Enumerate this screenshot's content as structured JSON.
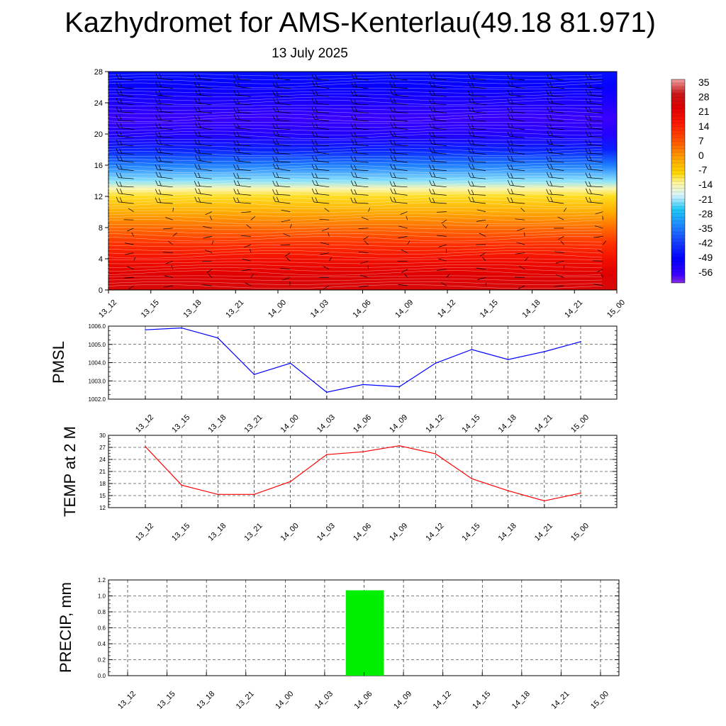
{
  "title": "Kazhydromet for AMS-Kenterlau(49.18 81.971)",
  "subtitle": "13 July 2025",
  "time_labels": [
    "13_12",
    "13_15",
    "13_18",
    "13_21",
    "14_00",
    "14_03",
    "14_06",
    "14_09",
    "14_12",
    "14_15",
    "14_18",
    "14_21",
    "15_00"
  ],
  "colorbar": {
    "labels": [
      "35",
      "28",
      "21",
      "14",
      "7",
      "0",
      "-7",
      "-14",
      "-21",
      "-28",
      "-35",
      "-42",
      "-49",
      "-56"
    ]
  },
  "chart_data": [
    {
      "type": "heatmap",
      "title": "Kazhydromet for AMS-Kenterlau(49.18 81.971)",
      "subtitle": "13 July 2025",
      "ylim": [
        0,
        28
      ],
      "yticks": [
        "0",
        "4",
        "8",
        "12",
        "16",
        "20",
        "24",
        "28"
      ],
      "x": [
        "13_12",
        "13_15",
        "13_18",
        "13_21",
        "14_00",
        "14_03",
        "14_06",
        "14_09",
        "14_12",
        "14_15",
        "14_18",
        "14_21",
        "15_00"
      ],
      "profile_levels": [
        0,
        2,
        4,
        6,
        8,
        10,
        12,
        13,
        14,
        16,
        18,
        20,
        22,
        24,
        26,
        28
      ],
      "profile_values": [
        24,
        21,
        16,
        10,
        3,
        -4,
        -11,
        -16,
        -24,
        -36,
        -47,
        -56,
        -59,
        -55,
        -52,
        -49
      ],
      "colorbar_range": [
        -63,
        35
      ],
      "grid": false
    },
    {
      "type": "line",
      "ylabel": "PMSL",
      "x": [
        "13_12",
        "13_15",
        "13_18",
        "13_21",
        "14_00",
        "14_03",
        "14_06",
        "14_09",
        "14_12",
        "14_15",
        "14_18",
        "14_21",
        "15_00"
      ],
      "values": [
        1005.8,
        1005.9,
        1005.35,
        1003.35,
        1003.97,
        1002.38,
        1002.8,
        1002.68,
        1003.97,
        1004.72,
        1004.17,
        1004.6,
        1005.15
      ],
      "ylim": [
        1002.0,
        1006.0
      ],
      "yticks": [
        "1002.0",
        "1003.0",
        "1004.0",
        "1005.0",
        "1006.0"
      ],
      "color": "#0000ff",
      "grid": true
    },
    {
      "type": "line",
      "ylabel": "TEMP at 2 M",
      "x": [
        "13_12",
        "13_15",
        "13_18",
        "13_21",
        "14_00",
        "14_03",
        "14_06",
        "14_09",
        "14_12",
        "14_15",
        "14_18",
        "14_21",
        "15_00"
      ],
      "values": [
        27.2,
        17.6,
        15.3,
        15.3,
        18.5,
        25.2,
        25.9,
        27.4,
        25.4,
        19.2,
        16.2,
        13.7,
        15.6
      ],
      "ylim": [
        12,
        30
      ],
      "yticks": [
        "12",
        "15",
        "18",
        "21",
        "24",
        "27",
        "30"
      ],
      "color": "#ff0000",
      "grid": true
    },
    {
      "type": "bar",
      "ylabel": "PRECIP, mm",
      "categories": [
        "13_12",
        "13_15",
        "13_18",
        "13_21",
        "14_00",
        "14_03",
        "14_06",
        "14_09",
        "14_12",
        "14_15",
        "14_18",
        "14_21",
        "15_00"
      ],
      "values": [
        0,
        0,
        0,
        0,
        0,
        0,
        1.07,
        0,
        0,
        0,
        0,
        0,
        0
      ],
      "ylim": [
        0.0,
        1.2
      ],
      "yticks": [
        "0.0",
        "0.2",
        "0.4",
        "0.6",
        "0.8",
        "1.0",
        "1.2"
      ],
      "color": "#00ee00",
      "grid": true
    }
  ]
}
